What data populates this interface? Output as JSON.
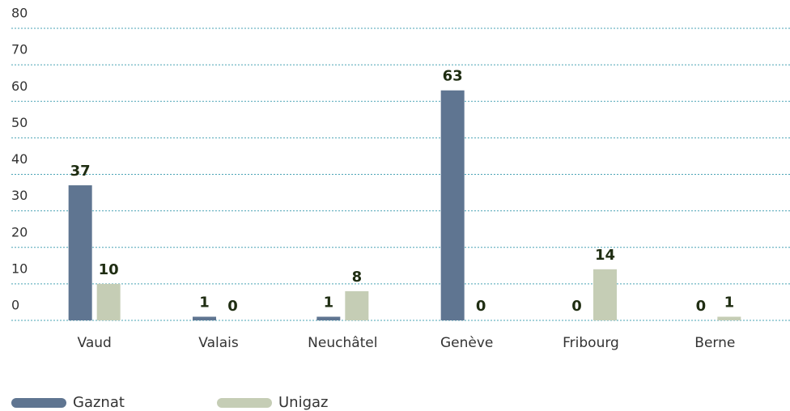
{
  "chart_data": {
    "type": "bar",
    "categories": [
      "Vaud",
      "Valais",
      "Neuchâtel",
      "Genève",
      "Fribourg",
      "Berne"
    ],
    "series": [
      {
        "name": "Gaznat",
        "color": "#5f7591",
        "values": [
          37,
          1,
          1,
          63,
          0,
          0
        ]
      },
      {
        "name": "Unigaz",
        "color": "#c5cdb5",
        "values": [
          10,
          0,
          8,
          0,
          14,
          1
        ]
      }
    ],
    "ylim": [
      0,
      80
    ],
    "yticks": [
      0,
      10,
      20,
      30,
      40,
      50,
      60,
      70,
      80
    ],
    "grid": true
  }
}
